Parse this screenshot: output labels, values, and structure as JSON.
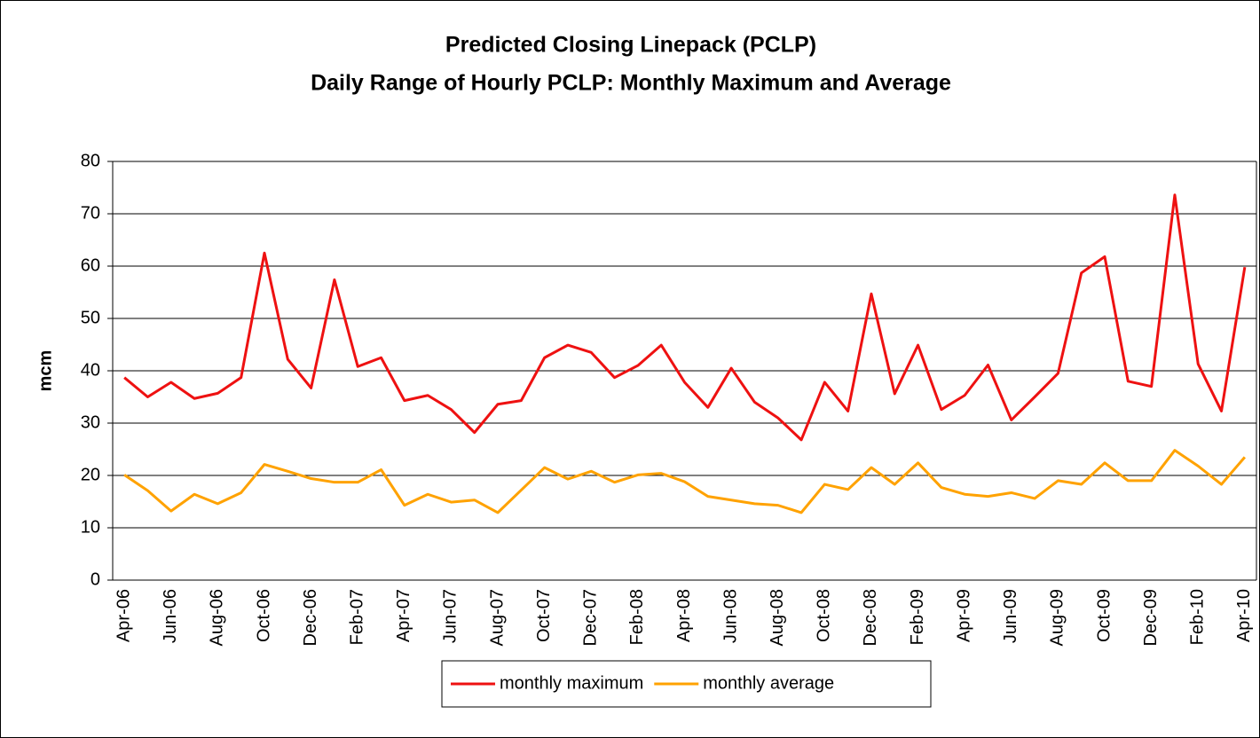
{
  "chart_data": {
    "type": "line",
    "title": "Predicted Closing Linepack (PCLP)",
    "subtitle": "Daily Range of Hourly PCLP: Monthly Maximum and Average",
    "y_label": "mcm",
    "categories": [
      "Apr-06",
      null,
      "Jun-06",
      null,
      "Aug-06",
      null,
      "Oct-06",
      null,
      "Dec-06",
      null,
      "Feb-07",
      null,
      "Apr-07",
      null,
      "Jun-07",
      null,
      "Aug-07",
      null,
      "Oct-07",
      null,
      "Dec-07",
      null,
      "Feb-08",
      null,
      "Apr-08",
      null,
      "Jun-08",
      null,
      "Aug-08",
      null,
      "Oct-08",
      null,
      "Dec-08",
      null,
      "Feb-09",
      null,
      "Apr-09",
      null,
      "Jun-09",
      null,
      "Aug-09",
      null,
      "Oct-09",
      null,
      "Dec-09",
      null,
      "Feb-10",
      null,
      "Apr-10"
    ],
    "series": [
      {
        "name": "monthly maximum",
        "color": "#ee1111",
        "values": [
          38.7,
          35,
          37.8,
          34.7,
          35.7,
          38.7,
          62.5,
          42.2,
          36.7,
          57.4,
          40.8,
          42.5,
          34.3,
          35.3,
          32.6,
          28.2,
          33.6,
          34.3,
          42.5,
          44.9,
          43.5,
          38.7,
          41,
          44.9,
          37.8,
          33,
          40.5,
          34,
          31,
          26.8,
          37.8,
          32.3,
          54.7,
          35.6,
          44.9,
          32.6,
          35.3,
          41.1,
          30.6,
          35,
          39.5,
          58.7,
          61.8,
          38,
          37,
          73.6,
          41.3,
          32.3,
          59.8
        ]
      },
      {
        "name": "monthly average",
        "color": "#ffa200",
        "values": [
          20.1,
          17.1,
          13.2,
          16.4,
          14.6,
          16.7,
          22.1,
          20.8,
          19.4,
          18.7,
          18.7,
          21.1,
          14.3,
          16.4,
          14.9,
          15.3,
          12.9,
          17.2,
          21.5,
          19.3,
          20.8,
          18.7,
          20.1,
          20.4,
          18.8,
          16,
          15.3,
          14.6,
          14.3,
          12.9,
          18.3,
          17.3,
          21.5,
          18.3,
          22.4,
          17.7,
          16.4,
          16,
          16.7,
          15.6,
          19,
          18.3,
          22.4,
          19,
          19,
          24.8,
          21.8,
          18.3,
          23.5
        ]
      }
    ],
    "ylim": [
      0,
      80
    ],
    "yticks": [
      0,
      10,
      20,
      30,
      40,
      50,
      60,
      70,
      80
    ],
    "grid": true,
    "legend": "bottom"
  }
}
